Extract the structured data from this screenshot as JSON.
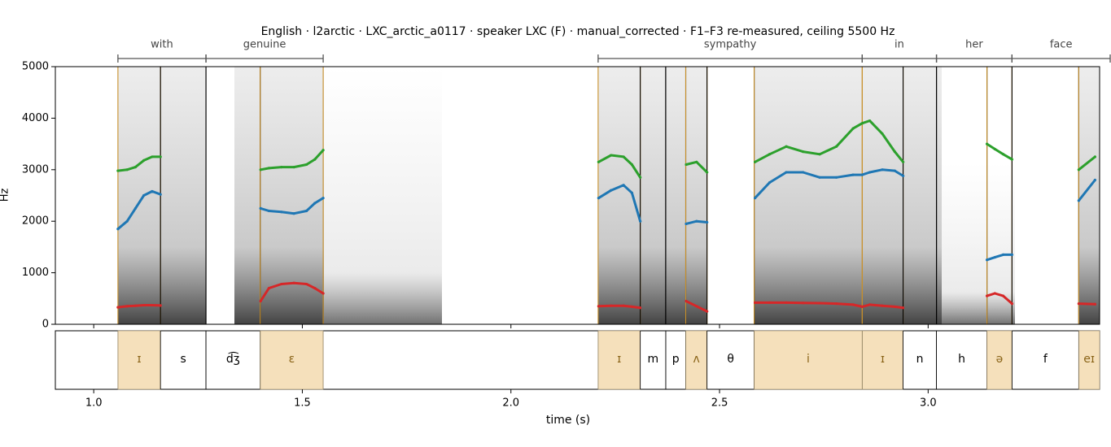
{
  "chart_data": {
    "type": "formant",
    "title": "English · l2arctic · LXC_arctic_a0117 · speaker LXC (F) · manual_corrected · F1–F3 re-measured, ceiling 5500 Hz",
    "xlabel": "time (s)",
    "ylabel": "Hz",
    "xlim": [
      0.908,
      3.411
    ],
    "ylim": [
      0,
      5000
    ],
    "xticks": [
      {
        "value": 1,
        "label": "1.0"
      },
      1.5,
      {
        "value": 2,
        "label": "2.0"
      },
      2.5,
      {
        "value": 3,
        "label": "3.0"
      }
    ],
    "yticks": [
      0,
      1000,
      2000,
      3000,
      4000,
      5000
    ],
    "vowel_color": "#f5e0bb",
    "vowel_line_color": "#c8902a",
    "vowel_text_color": "#8a6418",
    "words": [
      {
        "label": "with",
        "start": 1.058,
        "end": 1.269
      },
      {
        "label": "genuine",
        "start": 1.269,
        "end": 1.55
      },
      {
        "label": "sympathy",
        "start": 2.209,
        "end": 2.842
      },
      {
        "label": "in",
        "start": 2.842,
        "end": 3.02
      },
      {
        "label": "her",
        "start": 3.02,
        "end": 3.201
      },
      {
        "label": "face",
        "start": 3.201,
        "end": 3.438
      }
    ],
    "phones": [
      {
        "label": "ɪ",
        "start": 1.058,
        "end": 1.16,
        "vowel": true
      },
      {
        "label": "s",
        "start": 1.16,
        "end": 1.269,
        "vowel": false
      },
      {
        "label": "d͡ʒ",
        "start": 1.269,
        "end": 1.399,
        "vowel": false
      },
      {
        "label": "ɛ",
        "start": 1.399,
        "end": 1.55,
        "vowel": true
      },
      {
        "label": "ɪ",
        "start": 2.209,
        "end": 2.31,
        "vowel": true
      },
      {
        "label": "m",
        "start": 2.31,
        "end": 2.371,
        "vowel": false
      },
      {
        "label": "p",
        "start": 2.371,
        "end": 2.419,
        "vowel": false
      },
      {
        "label": "ʌ",
        "start": 2.419,
        "end": 2.47,
        "vowel": true
      },
      {
        "label": "θ",
        "start": 2.47,
        "end": 2.583,
        "vowel": false
      },
      {
        "label": "i",
        "start": 2.583,
        "end": 2.842,
        "vowel": true
      },
      {
        "label": "ɪ",
        "start": 2.842,
        "end": 2.94,
        "vowel": true
      },
      {
        "label": "n",
        "start": 2.94,
        "end": 3.02,
        "vowel": false
      },
      {
        "label": "h",
        "start": 3.02,
        "end": 3.141,
        "vowel": false
      },
      {
        "label": "ə",
        "start": 3.141,
        "end": 3.201,
        "vowel": true
      },
      {
        "label": "f",
        "start": 3.201,
        "end": 3.361,
        "vowel": false
      },
      {
        "label": "eɪ",
        "start": 3.361,
        "end": 3.411,
        "vowel": true
      }
    ],
    "series": [
      {
        "color": "#d62728",
        "x": [
          1.058,
          1.08,
          1.1,
          1.12,
          1.14,
          1.16,
          1.28,
          1.4,
          1.42,
          1.45,
          1.48,
          1.51,
          1.53,
          1.55,
          1.9,
          2.21,
          2.24,
          2.27,
          2.29,
          2.31,
          2.36,
          2.42,
          2.445,
          2.47,
          2.52,
          2.585,
          2.62,
          2.66,
          2.7,
          2.74,
          2.78,
          2.82,
          2.842,
          2.86,
          2.89,
          2.92,
          2.94,
          3.05,
          3.141,
          3.16,
          3.18,
          3.201,
          3.28,
          3.361,
          3.4
        ],
        "values": [
          330,
          350,
          360,
          370,
          370,
          365,
          null,
          450,
          700,
          780,
          800,
          780,
          700,
          600,
          null,
          350,
          360,
          360,
          340,
          320,
          null,
          450,
          350,
          250,
          null,
          420,
          420,
          420,
          415,
          410,
          400,
          380,
          340,
          380,
          360,
          340,
          320,
          null,
          550,
          600,
          550,
          400,
          null,
          400,
          390
        ]
      },
      {
        "color": "#1f77b4",
        "x": [
          1.058,
          1.08,
          1.1,
          1.12,
          1.14,
          1.16,
          1.28,
          1.4,
          1.42,
          1.45,
          1.48,
          1.51,
          1.53,
          1.55,
          1.9,
          2.21,
          2.24,
          2.27,
          2.29,
          2.31,
          2.36,
          2.42,
          2.445,
          2.47,
          2.52,
          2.585,
          2.62,
          2.66,
          2.7,
          2.74,
          2.78,
          2.82,
          2.842,
          2.86,
          2.89,
          2.92,
          2.94,
          3.05,
          3.141,
          3.16,
          3.18,
          3.201,
          3.28,
          3.361,
          3.4
        ],
        "values": [
          1850,
          2000,
          2250,
          2500,
          2580,
          2520,
          null,
          2250,
          2200,
          2180,
          2150,
          2200,
          2350,
          2450,
          null,
          2450,
          2600,
          2700,
          2550,
          2000,
          null,
          1950,
          2000,
          1980,
          null,
          2450,
          2750,
          2950,
          2950,
          2850,
          2850,
          2900,
          2900,
          2950,
          3000,
          2980,
          2880,
          null,
          1250,
          1300,
          1350,
          1350,
          null,
          2400,
          2800
        ]
      },
      {
        "color": "#2ca02c",
        "x": [
          1.058,
          1.08,
          1.1,
          1.12,
          1.14,
          1.16,
          1.28,
          1.4,
          1.42,
          1.45,
          1.48,
          1.51,
          1.53,
          1.55,
          1.9,
          2.21,
          2.24,
          2.27,
          2.29,
          2.31,
          2.36,
          2.42,
          2.445,
          2.47,
          2.52,
          2.585,
          2.62,
          2.66,
          2.7,
          2.74,
          2.78,
          2.82,
          2.842,
          2.86,
          2.89,
          2.92,
          2.94,
          3.05,
          3.141,
          3.16,
          3.18,
          3.201,
          3.28,
          3.361,
          3.4
        ],
        "values": [
          2980,
          3000,
          3050,
          3180,
          3250,
          3250,
          null,
          3000,
          3030,
          3050,
          3050,
          3100,
          3200,
          3380,
          null,
          3150,
          3280,
          3250,
          3100,
          2850,
          null,
          3100,
          3150,
          2950,
          null,
          3150,
          3300,
          3450,
          3350,
          3300,
          3450,
          3800,
          3900,
          3950,
          3700,
          3350,
          3150,
          null,
          3500,
          3400,
          3300,
          3200,
          null,
          3000,
          3250
        ]
      }
    ]
  }
}
